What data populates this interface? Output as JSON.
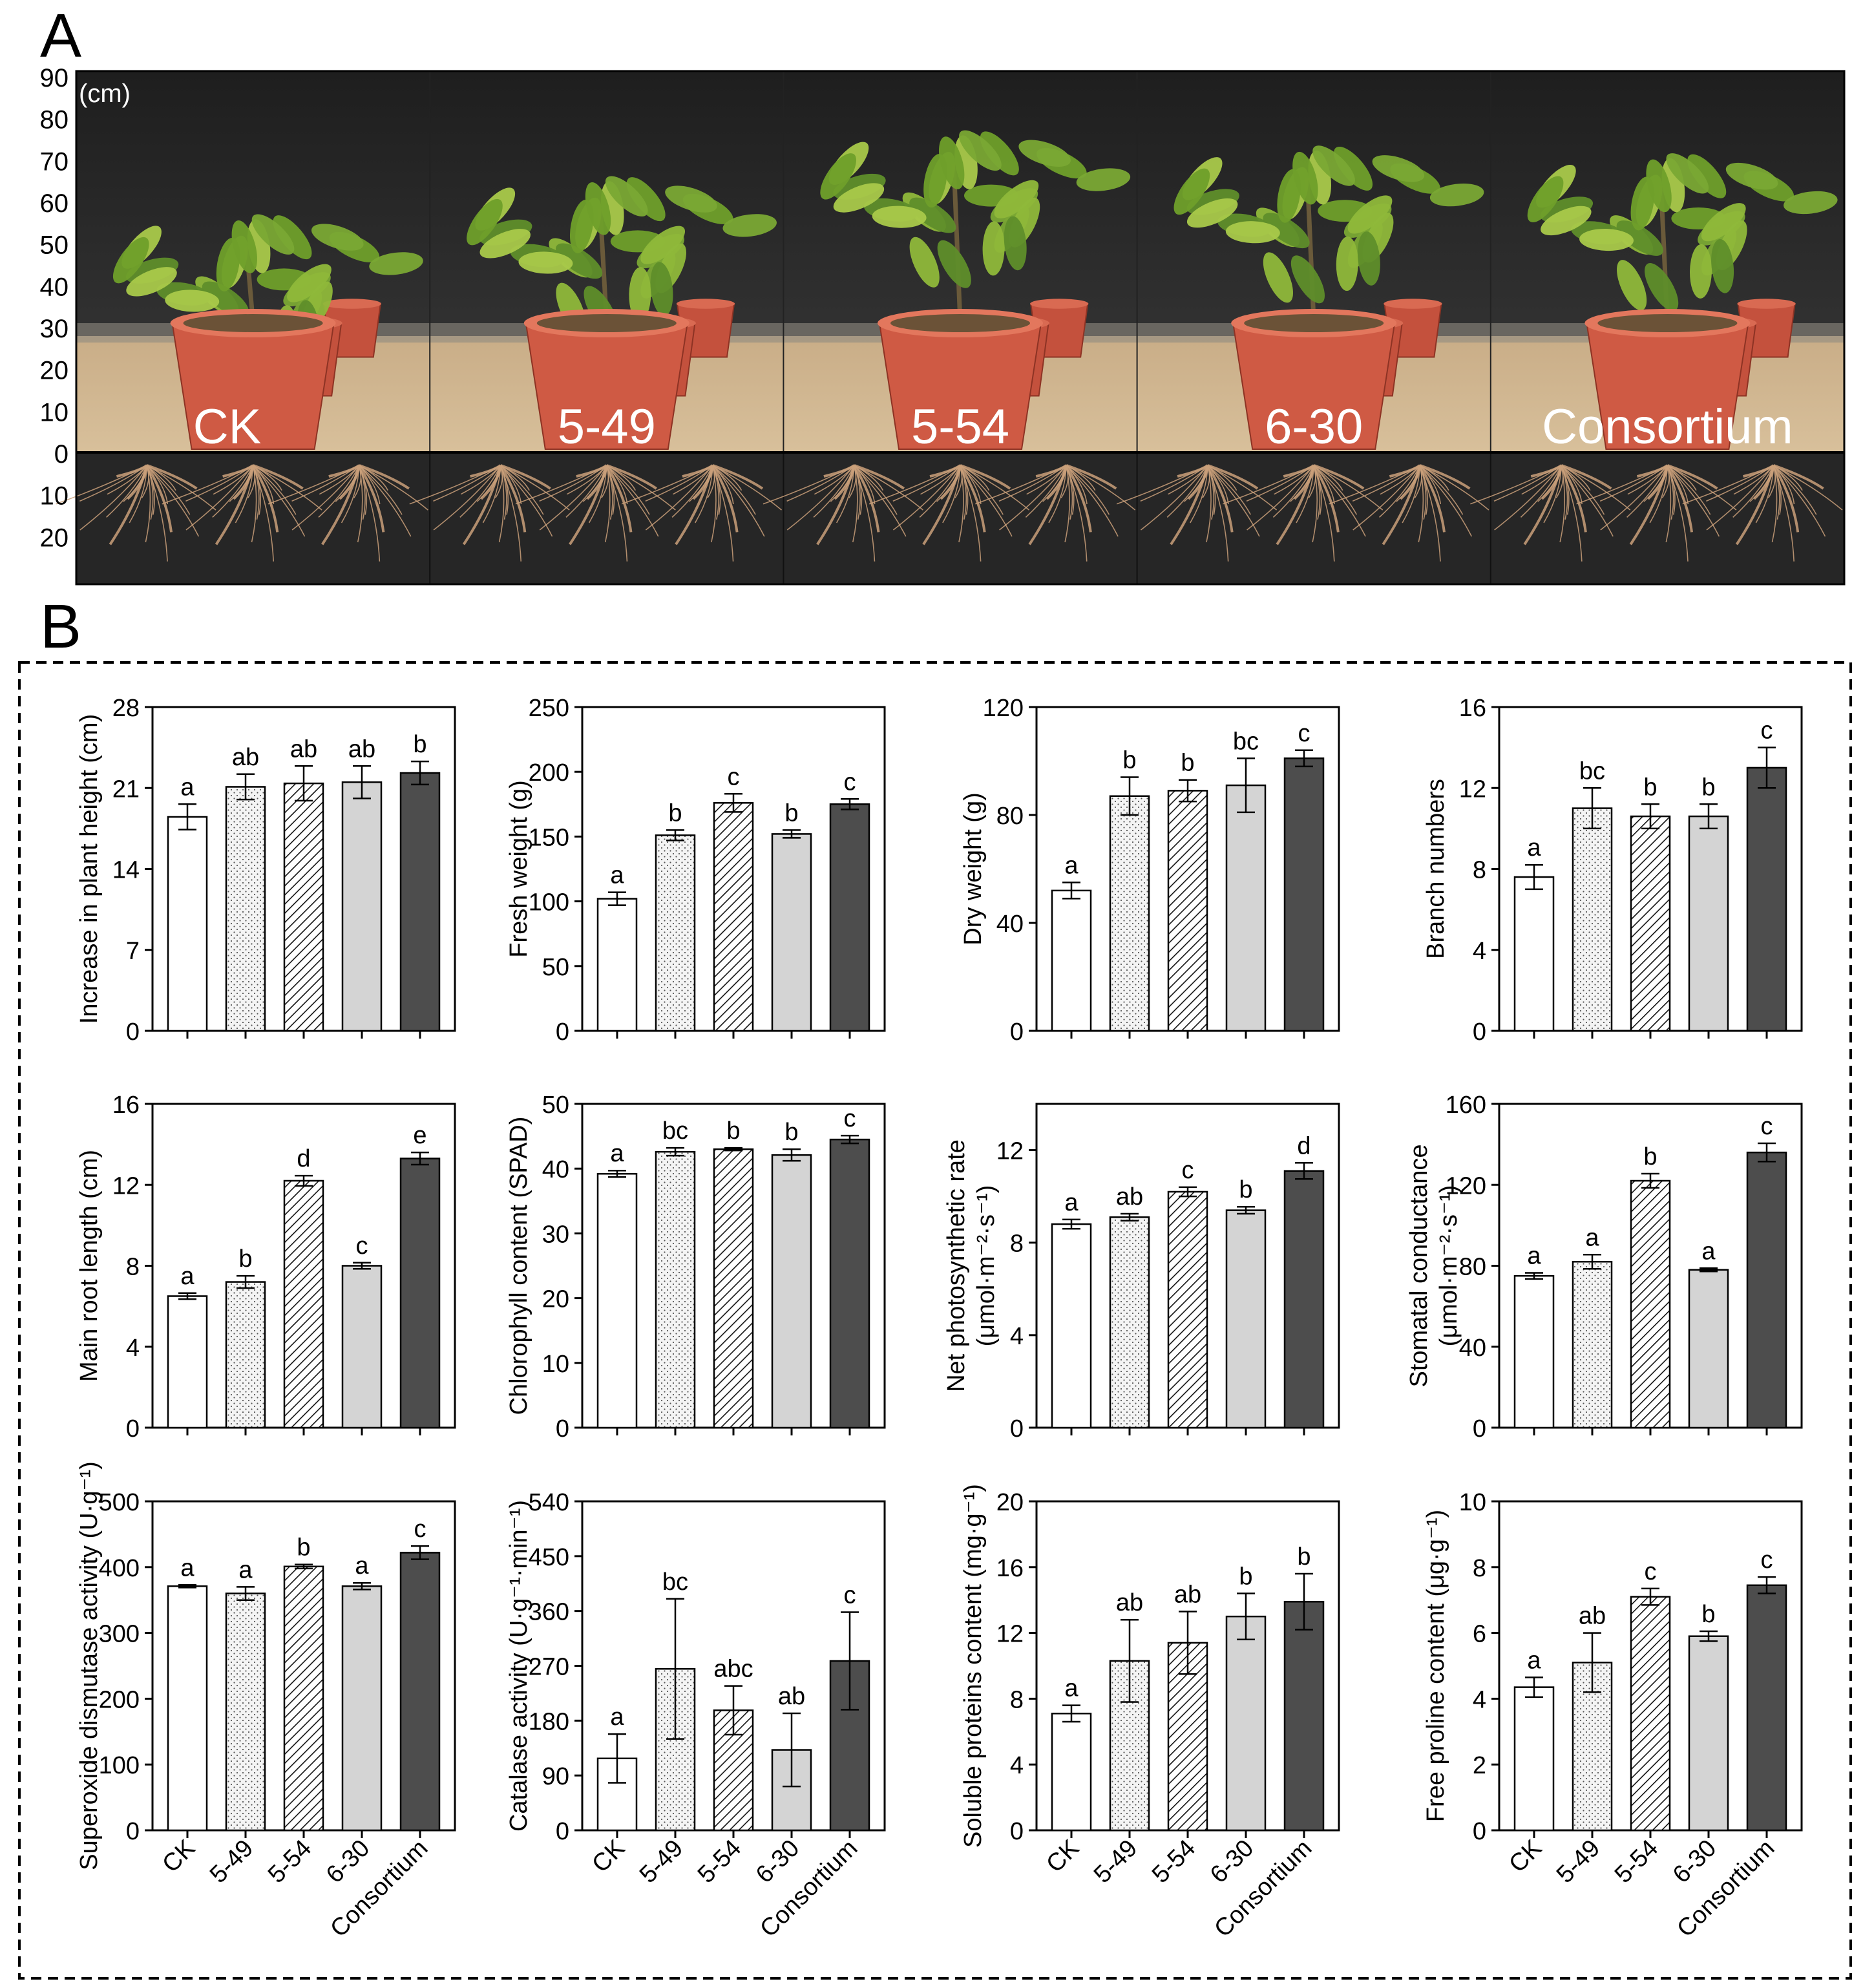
{
  "panel_a": {
    "label": "A",
    "unit": "(cm)",
    "scale_ticks_above": [
      "90",
      "80",
      "70",
      "60",
      "50",
      "40",
      "30",
      "20",
      "10",
      "0"
    ],
    "scale_ticks_below": [
      "10",
      "20"
    ],
    "treatments": [
      "CK",
      "5-49",
      "5-54",
      "6-30",
      "Consortium"
    ]
  },
  "panel_b": {
    "label": "B"
  },
  "colors": {
    "CK": "#ffffff",
    "5-49": "#f2f2f2",
    "5-54": "#ffffff",
    "6-30": "#d4d4d4",
    "Consortium": "#4d4d4d",
    "axis": "#000000"
  },
  "chart_data": [
    {
      "type": "bar",
      "categories": [
        "CK",
        "5-49",
        "5-54",
        "6-30",
        "Consortium"
      ],
      "ylabel": "Increase in plant height (cm)",
      "ylim": [
        0,
        28
      ],
      "yticks": [
        "0",
        "7",
        "14",
        "21",
        "28"
      ],
      "values": [
        18.5,
        21.1,
        21.4,
        21.5,
        22.3
      ],
      "errors": [
        1.1,
        1.1,
        1.5,
        1.4,
        1.0
      ],
      "letters": [
        "a",
        "ab",
        "ab",
        "ab",
        "b"
      ]
    },
    {
      "type": "bar",
      "categories": [
        "CK",
        "5-49",
        "5-54",
        "6-30",
        "Consortium"
      ],
      "ylabel": "Fresh weight (g)",
      "ylim": [
        0,
        250
      ],
      "yticks": [
        "0",
        "50",
        "100",
        "150",
        "200",
        "250"
      ],
      "values": [
        102,
        151,
        176,
        152,
        175
      ],
      "errors": [
        5,
        4,
        7,
        3,
        4
      ],
      "letters": [
        "a",
        "b",
        "c",
        "b",
        "c"
      ]
    },
    {
      "type": "bar",
      "categories": [
        "CK",
        "5-49",
        "5-54",
        "6-30",
        "Consortium"
      ],
      "ylabel": "Dry weight (g)",
      "ylim": [
        0,
        120
      ],
      "yticks": [
        "0",
        "40",
        "80",
        "120"
      ],
      "values": [
        52,
        87,
        89,
        91,
        101
      ],
      "errors": [
        3,
        7,
        4,
        10,
        3
      ],
      "letters": [
        "a",
        "b",
        "b",
        "bc",
        "c"
      ]
    },
    {
      "type": "bar",
      "categories": [
        "CK",
        "5-49",
        "5-54",
        "6-30",
        "Consortium"
      ],
      "ylabel": "Branch numbers",
      "ylim": [
        0,
        16
      ],
      "yticks": [
        "0",
        "4",
        "8",
        "12",
        "16"
      ],
      "values": [
        7.6,
        11.0,
        10.6,
        10.6,
        13.0
      ],
      "errors": [
        0.6,
        1.0,
        0.6,
        0.6,
        1.0
      ],
      "letters": [
        "a",
        "bc",
        "b",
        "b",
        "c"
      ]
    },
    {
      "type": "bar",
      "categories": [
        "CK",
        "5-49",
        "5-54",
        "6-30",
        "Consortium"
      ],
      "ylabel": "Main root length (cm)",
      "ylim": [
        0,
        16
      ],
      "yticks": [
        "0",
        "4",
        "8",
        "12",
        "16"
      ],
      "values": [
        6.5,
        7.2,
        12.2,
        8.0,
        13.3
      ],
      "errors": [
        0.15,
        0.3,
        0.25,
        0.15,
        0.3
      ],
      "letters": [
        "a",
        "b",
        "d",
        "c",
        "e"
      ]
    },
    {
      "type": "bar",
      "categories": [
        "CK",
        "5-49",
        "5-54",
        "6-30",
        "Consortium"
      ],
      "ylabel": "Chlorophyll content (SPAD)",
      "ylim": [
        0,
        50
      ],
      "yticks": [
        "0",
        "10",
        "20",
        "30",
        "40",
        "50"
      ],
      "values": [
        39.2,
        42.6,
        43.0,
        42.1,
        44.5
      ],
      "errors": [
        0.5,
        0.6,
        0.2,
        0.9,
        0.6
      ],
      "letters": [
        "a",
        "bc",
        "b",
        "b",
        "c"
      ]
    },
    {
      "type": "bar",
      "categories": [
        "CK",
        "5-49",
        "5-54",
        "6-30",
        "Consortium"
      ],
      "ylabel": "Net photosynthetic rate",
      "ylabel2": "(μmol·m⁻²·s⁻¹)",
      "ylim": [
        0,
        14
      ],
      "yticks": [
        "0",
        "4",
        "8",
        "12"
      ],
      "values": [
        8.8,
        9.1,
        10.2,
        9.4,
        11.1
      ],
      "errors": [
        0.2,
        0.15,
        0.2,
        0.15,
        0.35
      ],
      "letters": [
        "a",
        "ab",
        "c",
        "b",
        "d"
      ]
    },
    {
      "type": "bar",
      "categories": [
        "CK",
        "5-49",
        "5-54",
        "6-30",
        "Consortium"
      ],
      "ylabel": "Stomatal conductance",
      "ylabel2": "(μmol·m⁻²·s⁻¹)",
      "ylim": [
        0,
        160
      ],
      "yticks": [
        "0",
        "40",
        "80",
        "120",
        "160"
      ],
      "values": [
        75,
        82,
        122,
        78,
        136
      ],
      "errors": [
        1.5,
        3.5,
        3.5,
        0.8,
        4.5
      ],
      "letters": [
        "a",
        "a",
        "b",
        "a",
        "c"
      ]
    },
    {
      "type": "bar",
      "categories": [
        "CK",
        "5-49",
        "5-54",
        "6-30",
        "Consortium"
      ],
      "ylabel": "Superoxide dismutase activity (U·g⁻¹)",
      "ylim": [
        0,
        500
      ],
      "yticks": [
        "0",
        "100",
        "200",
        "300",
        "400",
        "500"
      ],
      "values": [
        371,
        360,
        401,
        371,
        422
      ],
      "errors": [
        2,
        10,
        3,
        5,
        10
      ],
      "letters": [
        "a",
        "a",
        "b",
        "a",
        "c"
      ]
    },
    {
      "type": "bar",
      "categories": [
        "CK",
        "5-49",
        "5-54",
        "6-30",
        "Consortium"
      ],
      "ylabel": "Catalase activity (U·g⁻¹·min⁻¹)",
      "ylim": [
        0,
        540
      ],
      "yticks": [
        "0",
        "90",
        "180",
        "270",
        "360",
        "450",
        "540"
      ],
      "values": [
        118,
        265,
        197,
        132,
        278
      ],
      "errors": [
        40,
        115,
        40,
        60,
        80
      ],
      "letters": [
        "a",
        "bc",
        "abc",
        "ab",
        "c"
      ]
    },
    {
      "type": "bar",
      "categories": [
        "CK",
        "5-49",
        "5-54",
        "6-30",
        "Consortium"
      ],
      "ylabel": "Soluble proteins content (mg·g⁻¹)",
      "ylim": [
        0,
        20
      ],
      "yticks": [
        "0",
        "4",
        "8",
        "12",
        "16",
        "20"
      ],
      "values": [
        7.1,
        10.3,
        11.4,
        13.0,
        13.9
      ],
      "errors": [
        0.5,
        2.5,
        1.9,
        1.4,
        1.7
      ],
      "letters": [
        "a",
        "ab",
        "ab",
        "b",
        "b"
      ]
    },
    {
      "type": "bar",
      "categories": [
        "CK",
        "5-49",
        "5-54",
        "6-30",
        "Consortium"
      ],
      "ylabel": "Free proline content (μg·g⁻¹)",
      "ylim": [
        0,
        10
      ],
      "yticks": [
        "0",
        "2",
        "4",
        "6",
        "8",
        "10"
      ],
      "values": [
        4.35,
        5.1,
        7.1,
        5.9,
        7.45
      ],
      "errors": [
        0.3,
        0.9,
        0.25,
        0.15,
        0.25
      ],
      "letters": [
        "a",
        "ab",
        "c",
        "b",
        "c"
      ]
    }
  ]
}
